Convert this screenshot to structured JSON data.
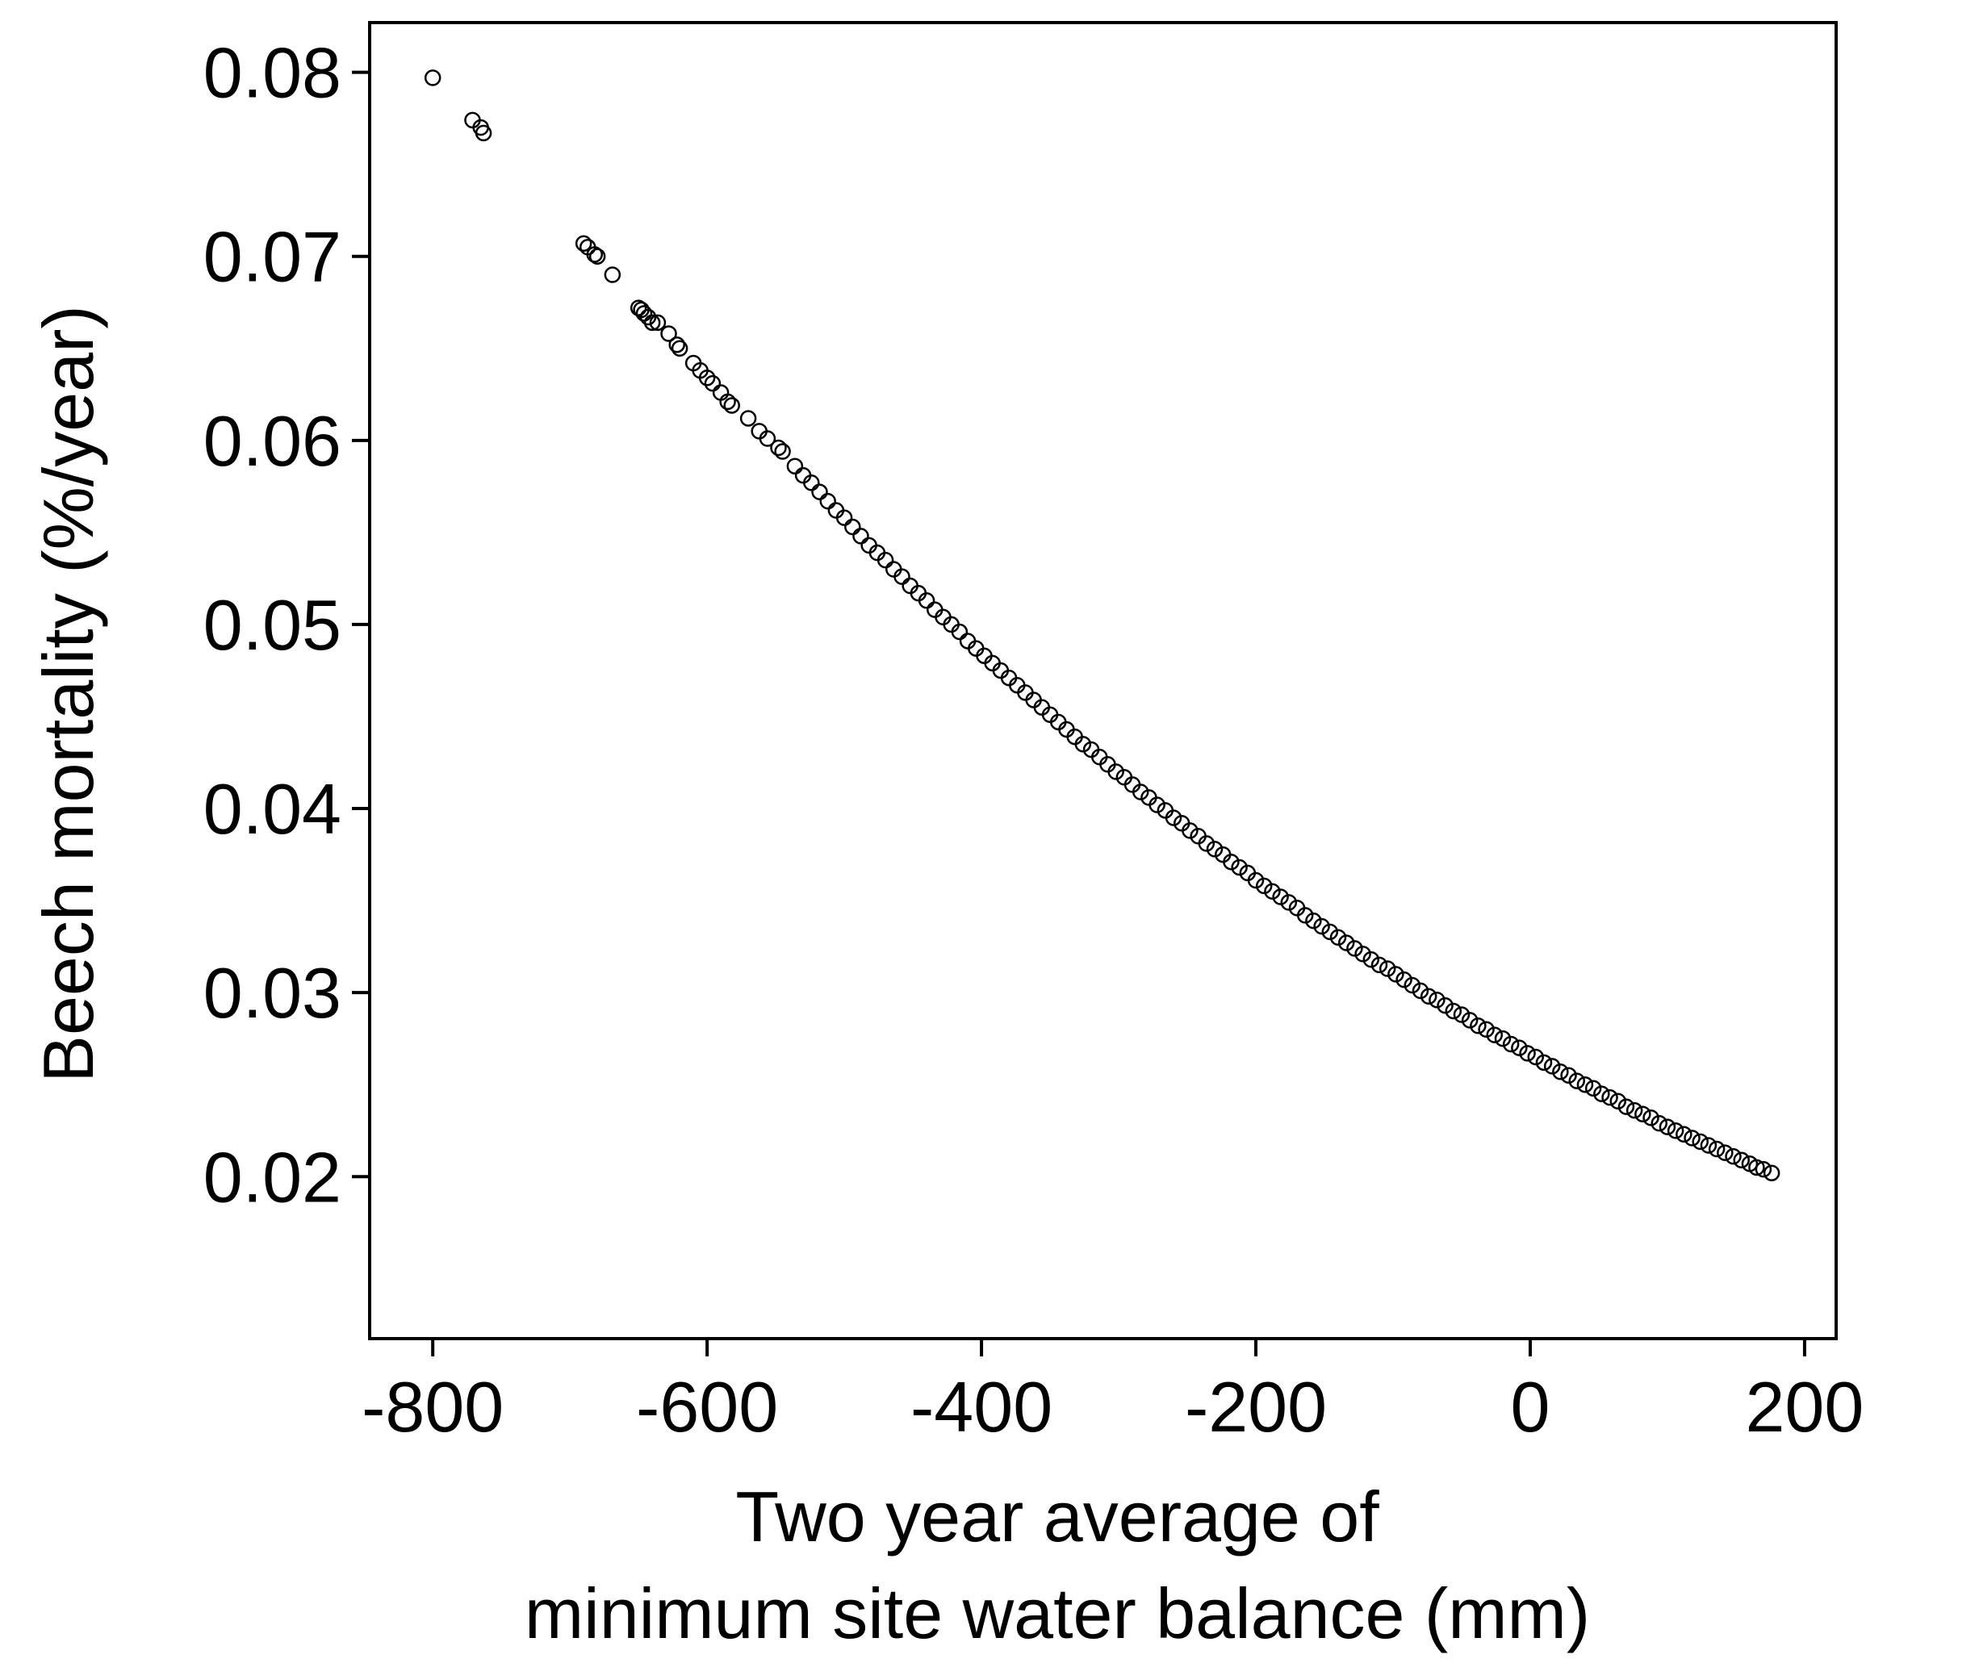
{
  "chart_data": {
    "type": "scatter",
    "title": "",
    "xlabel_lines": [
      "Two year average of",
      "minimum site water balance (mm)"
    ],
    "ylabel": "Beech mortality (%/year)",
    "xlim": [
      -846,
      223
    ],
    "ylim": [
      0.0112,
      0.0827
    ],
    "xticks": [
      -800,
      -600,
      -400,
      -200,
      0,
      200
    ],
    "xtick_labels": [
      "-800",
      "-600",
      "-400",
      "-200",
      "0",
      "200"
    ],
    "yticks": [
      0.02,
      0.03,
      0.04,
      0.05,
      0.06,
      0.07,
      0.08
    ],
    "ytick_labels": [
      "0.02",
      "0.03",
      "0.04",
      "0.05",
      "0.06",
      "0.07",
      "0.08"
    ],
    "grid": false,
    "legend": "none",
    "marker": "open-circle",
    "colors": {
      "marker": "#000000",
      "axis": "#000000",
      "background": "#ffffff"
    },
    "points": [
      [
        -800,
        0.0797
      ],
      [
        -771,
        0.0774
      ],
      [
        -765,
        0.077
      ],
      [
        -763,
        0.0767
      ],
      [
        -690,
        0.0707
      ],
      [
        -687,
        0.0705
      ],
      [
        -682,
        0.0701
      ],
      [
        -680,
        0.07
      ],
      [
        -669,
        0.069
      ],
      [
        -650,
        0.0672
      ],
      [
        -648,
        0.0671
      ],
      [
        -646,
        0.0669
      ],
      [
        -643,
        0.0667
      ],
      [
        -640,
        0.0664
      ],
      [
        -636,
        0.0664
      ],
      [
        -628,
        0.0658
      ],
      [
        -622,
        0.0652
      ],
      [
        -620,
        0.065
      ],
      [
        -610,
        0.0642
      ],
      [
        -605,
        0.0638
      ],
      [
        -600,
        0.0634
      ],
      [
        -596,
        0.0631
      ],
      [
        -590,
        0.0626
      ],
      [
        -585,
        0.0621
      ],
      [
        -582,
        0.0619
      ],
      [
        -570,
        0.0612
      ],
      [
        -562,
        0.0605
      ],
      [
        -556,
        0.0601
      ],
      [
        -548,
        0.0596
      ],
      [
        -545,
        0.0594
      ],
      [
        -536,
        0.0586
      ],
      [
        -530,
        0.0581
      ],
      [
        -524,
        0.0577
      ],
      [
        -518,
        0.0572
      ],
      [
        -512,
        0.0567
      ],
      [
        -506,
        0.0562
      ],
      [
        -500,
        0.0558
      ],
      [
        -494,
        0.0553
      ],
      [
        -488,
        0.0548
      ],
      [
        -482,
        0.0543
      ],
      [
        -476,
        0.0539
      ],
      [
        -470,
        0.0535
      ],
      [
        -464,
        0.053
      ],
      [
        -458,
        0.0526
      ],
      [
        -452,
        0.0521
      ],
      [
        -446,
        0.0517
      ],
      [
        -440,
        0.0513
      ],
      [
        -434,
        0.0508
      ],
      [
        -428,
        0.0504
      ],
      [
        -422,
        0.05
      ],
      [
        -416,
        0.0496
      ],
      [
        -410,
        0.0491
      ],
      [
        -404,
        0.0487
      ],
      [
        -398,
        0.0483
      ],
      [
        -392,
        0.0479
      ],
      [
        -386,
        0.0475
      ],
      [
        -380,
        0.0471
      ],
      [
        -374,
        0.0467
      ],
      [
        -368,
        0.0463
      ],
      [
        -362,
        0.0459
      ],
      [
        -356,
        0.0455
      ],
      [
        -350,
        0.0451
      ],
      [
        -344,
        0.0447
      ],
      [
        -338,
        0.0443
      ],
      [
        -332,
        0.0439
      ],
      [
        -326,
        0.0435
      ],
      [
        -320,
        0.0432
      ],
      [
        -314,
        0.0428
      ],
      [
        -308,
        0.0424
      ],
      [
        -302,
        0.042
      ],
      [
        -296,
        0.0417
      ],
      [
        -290,
        0.0413
      ],
      [
        -284,
        0.0409
      ],
      [
        -278,
        0.0406
      ],
      [
        -272,
        0.0402
      ],
      [
        -266,
        0.0399
      ],
      [
        -260,
        0.0395
      ],
      [
        -254,
        0.0392
      ],
      [
        -248,
        0.0388
      ],
      [
        -242,
        0.0385
      ],
      [
        -236,
        0.0381
      ],
      [
        -230,
        0.0378
      ],
      [
        -224,
        0.0375
      ],
      [
        -218,
        0.0371
      ],
      [
        -212,
        0.0368
      ],
      [
        -206,
        0.0365
      ],
      [
        -200,
        0.0361
      ],
      [
        -194,
        0.0358
      ],
      [
        -188,
        0.0355
      ],
      [
        -182,
        0.0352
      ],
      [
        -176,
        0.0349
      ],
      [
        -170,
        0.0346
      ],
      [
        -164,
        0.0342
      ],
      [
        -158,
        0.0339
      ],
      [
        -152,
        0.0336
      ],
      [
        -146,
        0.0333
      ],
      [
        -140,
        0.033
      ],
      [
        -134,
        0.0327
      ],
      [
        -128,
        0.0324
      ],
      [
        -122,
        0.0321
      ],
      [
        -116,
        0.0318
      ],
      [
        -110,
        0.0315
      ],
      [
        -104,
        0.0313
      ],
      [
        -98,
        0.031
      ],
      [
        -92,
        0.0307
      ],
      [
        -86,
        0.0304
      ],
      [
        -80,
        0.0301
      ],
      [
        -74,
        0.0298
      ],
      [
        -68,
        0.0296
      ],
      [
        -62,
        0.0293
      ],
      [
        -56,
        0.029
      ],
      [
        -50,
        0.0288
      ],
      [
        -44,
        0.0285
      ],
      [
        -38,
        0.0282
      ],
      [
        -32,
        0.028
      ],
      [
        -26,
        0.0277
      ],
      [
        -20,
        0.0275
      ],
      [
        -14,
        0.0272
      ],
      [
        -8,
        0.027
      ],
      [
        -2,
        0.0267
      ],
      [
        4,
        0.0265
      ],
      [
        10,
        0.0262
      ],
      [
        16,
        0.026
      ],
      [
        22,
        0.0257
      ],
      [
        28,
        0.0255
      ],
      [
        34,
        0.0252
      ],
      [
        40,
        0.025
      ],
      [
        46,
        0.0248
      ],
      [
        52,
        0.0245
      ],
      [
        58,
        0.0243
      ],
      [
        64,
        0.0241
      ],
      [
        70,
        0.0238
      ],
      [
        76,
        0.0236
      ],
      [
        82,
        0.0234
      ],
      [
        88,
        0.0232
      ],
      [
        94,
        0.0229
      ],
      [
        100,
        0.0227
      ],
      [
        106,
        0.0225
      ],
      [
        112,
        0.0223
      ],
      [
        118,
        0.0221
      ],
      [
        124,
        0.0219
      ],
      [
        130,
        0.0217
      ],
      [
        136,
        0.0215
      ],
      [
        142,
        0.0213
      ],
      [
        148,
        0.0211
      ],
      [
        154,
        0.0209
      ],
      [
        160,
        0.0207
      ],
      [
        165,
        0.0205
      ],
      [
        170,
        0.0204
      ],
      [
        176,
        0.0202
      ]
    ]
  }
}
